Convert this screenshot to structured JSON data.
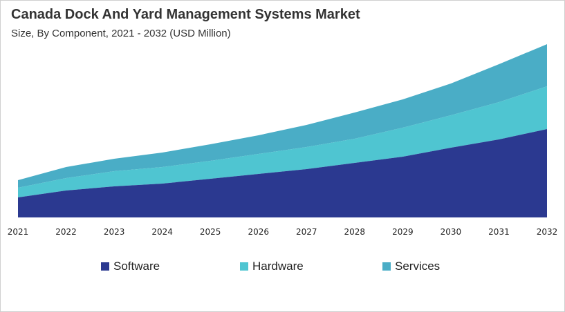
{
  "chart_data": {
    "type": "area",
    "stacked": true,
    "title": "Canada Dock And Yard Management Systems Market",
    "subtitle": "Size, By Component, 2021 - 2032 (USD Million)",
    "categories": [
      "2021",
      "2022",
      "2023",
      "2024",
      "2025",
      "2026",
      "2027",
      "2028",
      "2029",
      "2030",
      "2031",
      "2032"
    ],
    "series": [
      {
        "name": "Software",
        "color": "#2b3990",
        "values": [
          29,
          39,
          45,
          49,
          56,
          63,
          70,
          79,
          88,
          101,
          113,
          128
        ]
      },
      {
        "name": "Hardware",
        "color": "#4fc5d1",
        "values": [
          14,
          18,
          22,
          24,
          26,
          29,
          32,
          35,
          42,
          47,
          54,
          62
        ]
      },
      {
        "name": "Services",
        "color": "#4aadc6",
        "values": [
          11,
          16,
          18,
          21,
          24,
          27,
          32,
          38,
          41,
          46,
          55,
          61
        ]
      }
    ],
    "ylim": [
      0,
      251
    ],
    "y_axis_visible": false,
    "grid": false,
    "legend_position": "bottom"
  }
}
